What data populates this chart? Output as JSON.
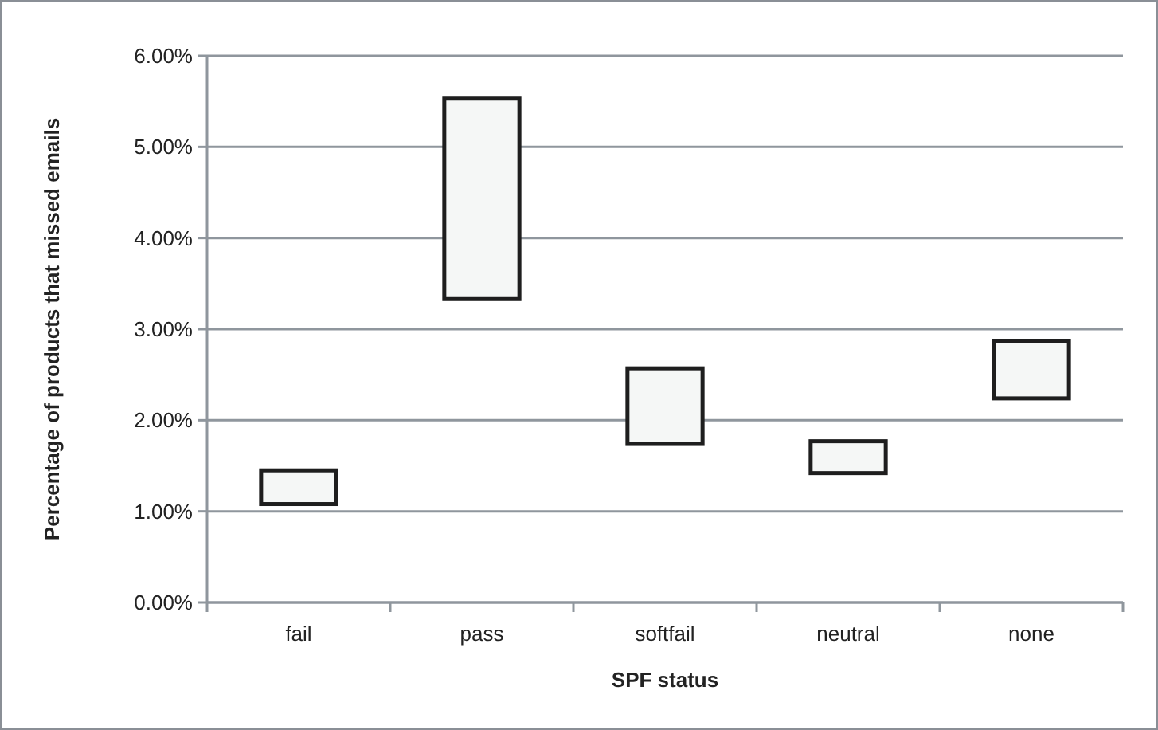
{
  "chart_data": {
    "type": "bar",
    "xlabel": "SPF status",
    "ylabel": "Percentage of products that missed emails",
    "categories": [
      "fail",
      "pass",
      "softfail",
      "neutral",
      "none"
    ],
    "base": [
      1.08,
      3.33,
      1.74,
      1.42,
      2.24
    ],
    "values": [
      0.37,
      2.2,
      0.83,
      0.35,
      0.63
    ],
    "color": "#f5f7f6",
    "ylim": [
      0,
      6
    ],
    "yticks": [
      {
        "value": 0,
        "label": "0.00%"
      },
      {
        "value": 1,
        "label": "1.00%"
      },
      {
        "value": 2,
        "label": "2.00%"
      },
      {
        "value": 3,
        "label": "3.00%"
      },
      {
        "value": 4,
        "label": "4.00%"
      },
      {
        "value": 5,
        "label": "5.00%"
      },
      {
        "value": 6,
        "label": "6.00%"
      }
    ],
    "grid": "y"
  }
}
